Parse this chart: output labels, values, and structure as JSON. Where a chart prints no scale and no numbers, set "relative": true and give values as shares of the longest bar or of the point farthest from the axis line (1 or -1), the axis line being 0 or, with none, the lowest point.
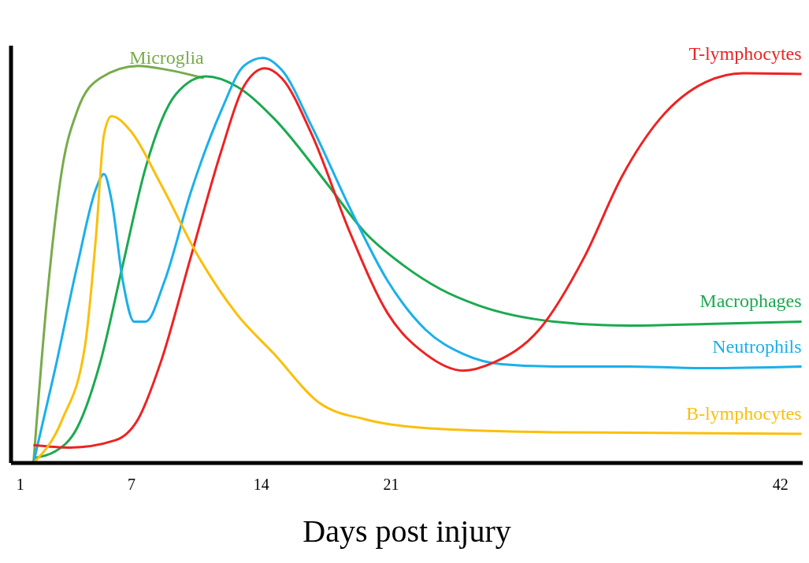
{
  "chart_data": {
    "type": "line",
    "relative": true,
    "xlabel": "Days post injury",
    "xlim": [
      0.5,
      43.2
    ],
    "xticks": [
      1,
      7,
      14,
      21,
      42
    ],
    "series": [
      {
        "name": "Microglia",
        "color": "#77ab4b",
        "x": [
          1.71,
          2.45,
          3.27,
          4.08,
          5.31,
          7.35,
          8.98,
          10.9
        ],
        "values": [
          0,
          0.41,
          0.73,
          0.87,
          0.95,
          0.98,
          0.97,
          0.95
        ]
      },
      {
        "name": "Macrophages",
        "color": "#1aaa50",
        "x": [
          1.71,
          2.86,
          4.08,
          5.31,
          6.53,
          7.76,
          9.39,
          11.02,
          12.65,
          14.69,
          17.55,
          19.59,
          21.63,
          23.67,
          25.71,
          29.8,
          33.9,
          37.96,
          43.14
        ],
        "values": [
          0.012,
          0.028,
          0.088,
          0.248,
          0.489,
          0.729,
          0.91,
          0.954,
          0.93,
          0.85,
          0.689,
          0.569,
          0.489,
          0.429,
          0.389,
          0.349,
          0.339,
          0.343,
          0.349
        ]
      },
      {
        "name": "Neutrophils",
        "color": "#1ab0ea",
        "x": [
          1.71,
          2.86,
          4.08,
          5.1,
          5.51,
          5.92,
          6.53,
          7.14,
          7.76,
          8.78,
          10.2,
          11.84,
          13.06,
          14.08,
          15.1,
          16.73,
          18.78,
          20.82,
          22.86,
          24.9,
          26.94,
          29.8,
          33.88,
          37.96,
          43.14
        ],
        "values": [
          0,
          0.228,
          0.489,
          0.679,
          0.713,
          0.649,
          0.449,
          0.349,
          0.349,
          0.449,
          0.669,
          0.87,
          0.98,
          1,
          0.97,
          0.83,
          0.629,
          0.449,
          0.329,
          0.269,
          0.244,
          0.238,
          0.238,
          0.234,
          0.238
        ]
      },
      {
        "name": "T-lymphocytes",
        "color": "#ee2222",
        "x": [
          1.71,
          3.67,
          6.12,
          7.35,
          8.57,
          10.2,
          11.84,
          13.06,
          14.2,
          15.1,
          16.73,
          18.78,
          20.82,
          22.86,
          24.9,
          26.53,
          28.98,
          31.43,
          33.47,
          35.51,
          37.96,
          40.0,
          43.14
        ],
        "values": [
          0.044,
          0.038,
          0.056,
          0.108,
          0.248,
          0.509,
          0.77,
          0.93,
          0.974,
          0.95,
          0.81,
          0.569,
          0.369,
          0.269,
          0.228,
          0.248,
          0.329,
          0.509,
          0.709,
          0.85,
          0.94,
          0.962,
          0.96
        ]
      },
      {
        "name": "B-lymphocytes",
        "color": "#fbbf0a",
        "x": [
          1.71,
          3.27,
          4.49,
          5.1,
          5.51,
          5.92,
          6.94,
          8.57,
          10.61,
          12.65,
          14.69,
          17.14,
          19.59,
          23.67,
          29.8,
          43.14
        ],
        "values": [
          0,
          0.108,
          0.289,
          0.569,
          0.81,
          0.856,
          0.82,
          0.689,
          0.509,
          0.369,
          0.269,
          0.148,
          0.108,
          0.084,
          0.076,
          0.072
        ]
      }
    ]
  }
}
